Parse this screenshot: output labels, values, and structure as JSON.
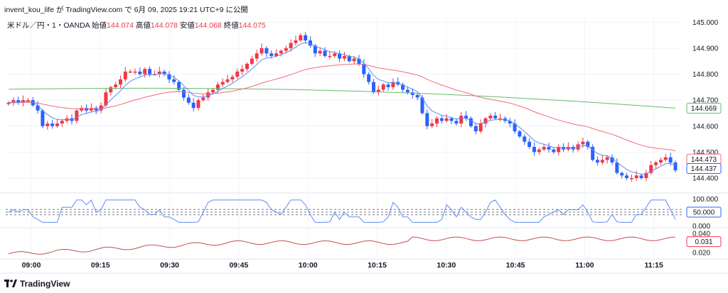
{
  "header": {
    "user": "invent_kou_life",
    "ga": "が",
    "site": "TradingView.com",
    "de": "で",
    "datetime": "6月 09, 2025 19:21 UTC+9",
    "suffix": "に公開"
  },
  "legend": {
    "symbol": "米ドル／円・1・OANDA",
    "open_label": "始値",
    "open": "144.074",
    "high_label": "高値",
    "high": "144.078",
    "low_label": "安値",
    "low": "144.068",
    "close_label": "終値",
    "close": "144.075"
  },
  "footer": {
    "brand": "TradingView"
  },
  "colors": {
    "up": "#f23645",
    "down": "#2962ff",
    "ma_fast": "#5b8def",
    "ma_mid": "#f26b76",
    "ma_slow": "#66bb6a",
    "osc": "#5b8def",
    "sub2": "#c0504d",
    "grid": "#f0f3fa"
  },
  "chart_data": [
    {
      "type": "candlestick",
      "symbol": "USDJPY 1m OANDA",
      "y_ticks": [
        "145.000",
        "144.900",
        "144.800",
        "144.700",
        "144.600",
        "144.500",
        "144.400"
      ],
      "ylim": [
        144.37,
        145.02
      ],
      "x_ticks": [
        "09:00",
        "09:15",
        "09:30",
        "09:45",
        "10:00",
        "10:15",
        "10:30",
        "10:45",
        "11:00",
        "11:15"
      ],
      "price_labels": [
        {
          "value": "144.669",
          "series": "ma_slow"
        },
        {
          "value": "144.473",
          "series": "ma_mid"
        },
        {
          "value": "144.437",
          "series": "ma_fast"
        }
      ],
      "closes": [
        144.69,
        144.7,
        144.69,
        144.7,
        144.7,
        144.68,
        144.66,
        144.6,
        144.61,
        144.6,
        144.61,
        144.62,
        144.63,
        144.62,
        144.66,
        144.67,
        144.66,
        144.67,
        144.66,
        144.68,
        144.73,
        144.75,
        144.76,
        144.78,
        144.81,
        144.81,
        144.81,
        144.8,
        144.82,
        144.8,
        144.8,
        144.81,
        144.8,
        144.78,
        144.77,
        144.74,
        144.71,
        144.69,
        144.67,
        144.7,
        144.71,
        144.73,
        144.74,
        144.76,
        144.77,
        144.78,
        144.79,
        144.81,
        144.82,
        144.84,
        144.86,
        144.88,
        144.9,
        144.88,
        144.87,
        144.88,
        144.89,
        144.9,
        144.92,
        144.93,
        144.95,
        144.93,
        144.91,
        144.88,
        144.89,
        144.87,
        144.87,
        144.88,
        144.86,
        144.87,
        144.85,
        144.86,
        144.84,
        144.8,
        144.77,
        144.73,
        144.74,
        144.76,
        144.75,
        144.77,
        144.76,
        144.74,
        144.73,
        144.72,
        144.71,
        144.65,
        144.6,
        144.61,
        144.63,
        144.62,
        144.63,
        144.62,
        144.61,
        144.64,
        144.63,
        144.6,
        144.58,
        144.61,
        144.63,
        144.64,
        144.63,
        144.63,
        144.62,
        144.61,
        144.58,
        144.56,
        144.54,
        144.52,
        144.5,
        144.51,
        144.52,
        144.51,
        144.5,
        144.52,
        144.51,
        144.52,
        144.51,
        144.53,
        144.54,
        144.52,
        144.47,
        144.46,
        144.47,
        144.48,
        144.46,
        144.42,
        144.41,
        144.4,
        144.4,
        144.41,
        144.4,
        144.42,
        144.45,
        144.46,
        144.47,
        144.48,
        144.46,
        144.43
      ],
      "ma_fast_label": "144.437",
      "ma_mid_label": "144.473",
      "ma_slow_label": "144.669"
    },
    {
      "type": "line",
      "name": "oscillator",
      "y_ticks": [
        "100.000",
        "0.000"
      ],
      "ylim": [
        0,
        100
      ],
      "dashed_levels": [
        40,
        50,
        60
      ],
      "last_label": "50.000"
    },
    {
      "type": "line",
      "name": "sub-indicator",
      "y_ticks": [
        "0.040",
        "0.020"
      ],
      "ylim": [
        0.015,
        0.045
      ],
      "last_label": "0.031"
    }
  ]
}
